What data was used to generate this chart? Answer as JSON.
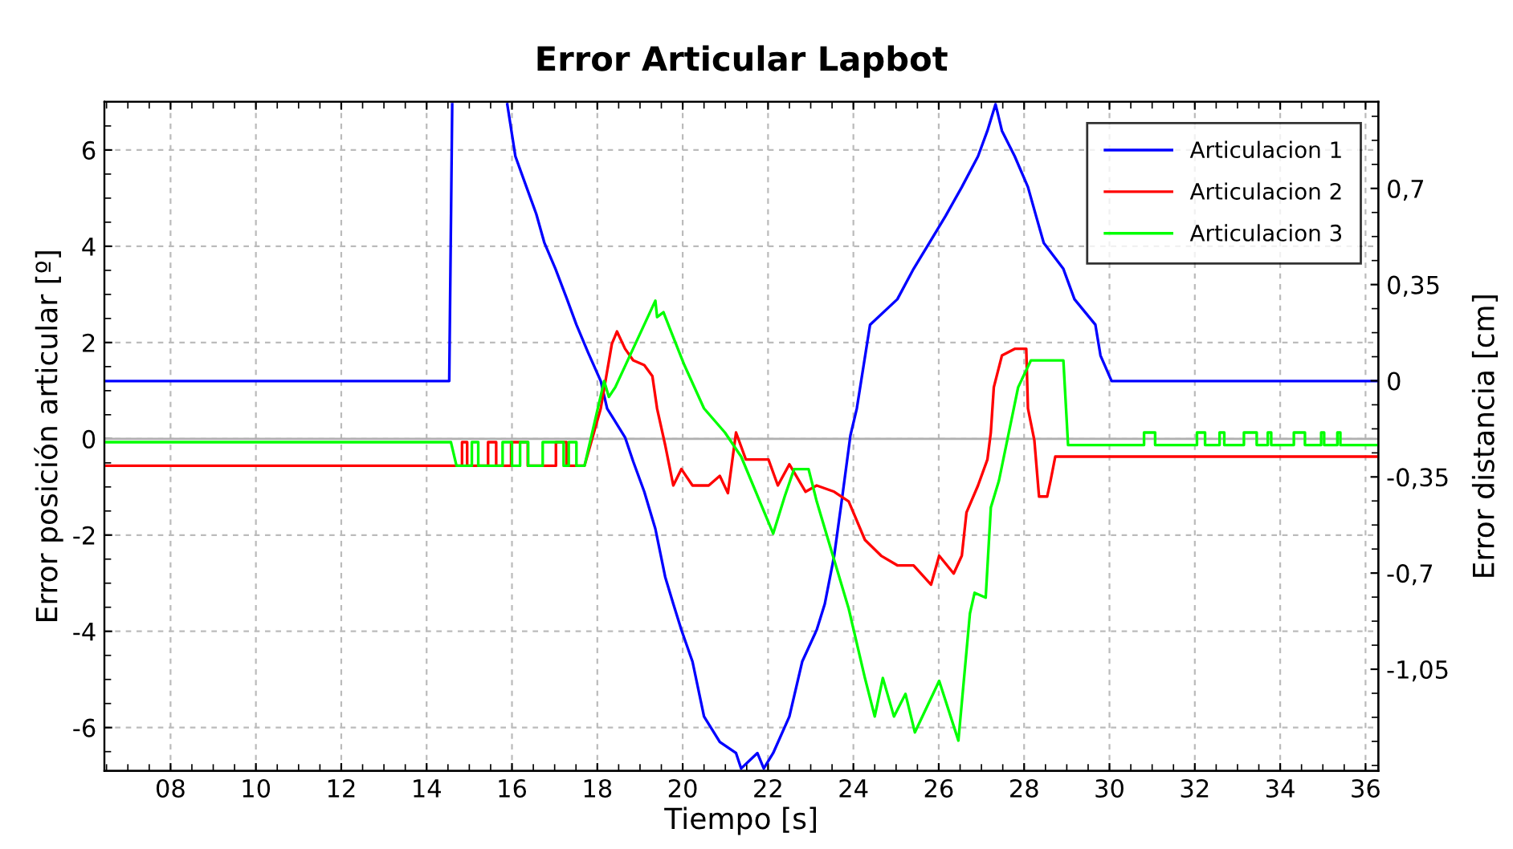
{
  "chart_data": {
    "type": "line",
    "title": "Error Articular Lapbot",
    "xlabel": "Tiempo [s]",
    "ylabel": "Error posición articular [º]",
    "y2label": "Error distancia [cm]",
    "xlim": [
      6.45,
      36.3
    ],
    "xticks": [
      {
        "value": 8,
        "label": "08"
      },
      10,
      12,
      14,
      16,
      18,
      20,
      22,
      24,
      26,
      28,
      30,
      32,
      34,
      36
    ],
    "ylim": [
      -6.9,
      7.0
    ],
    "yticks": [
      -6,
      -4,
      -2,
      0,
      2,
      4,
      6
    ],
    "y2lim": [
      -1.42,
      1.015
    ],
    "y2ticks": [
      {
        "value": -1.05,
        "label": "-1,05"
      },
      {
        "value": -0.7,
        "label": "-0,7"
      },
      {
        "value": -0.35,
        "label": "-0,35"
      },
      0,
      {
        "value": 0.35,
        "label": "0,35"
      },
      {
        "value": 0.7,
        "label": "0,7"
      }
    ],
    "grid": true,
    "legend": "top right",
    "line_style": "solid",
    "marker": "none",
    "ref_lines": [
      {
        "axis": "y",
        "value": 0,
        "color": "#b0b0b0",
        "line_style": "solid"
      }
    ],
    "series": [
      {
        "name": "Articulacion 1",
        "color": "#0000ff",
        "x": [
          6.45,
          14.53,
          14.6,
          null,
          15.89,
          16.08,
          16.34,
          16.57,
          16.76,
          17.02,
          17.29,
          17.51,
          17.78,
          18.08,
          18.23,
          18.65,
          18.84,
          19.1,
          19.36,
          19.59,
          19.78,
          19.97,
          20.23,
          20.5,
          20.87,
          21.25,
          21.37,
          21.75,
          21.9,
          22.12,
          22.5,
          22.8,
          23.14,
          23.33,
          23.55,
          23.74,
          23.93,
          24.08,
          24.39,
          25.03,
          25.41,
          25.78,
          26.16,
          26.54,
          26.92,
          27.14,
          27.33,
          27.48,
          27.78,
          28.09,
          28.28,
          28.46,
          28.92,
          29.18,
          29.67,
          29.79,
          30.05,
          36.3
        ],
        "values": [
          1.2,
          1.2,
          6.95,
          null,
          6.95,
          5.87,
          5.23,
          4.67,
          4.07,
          3.53,
          2.9,
          2.37,
          1.8,
          1.2,
          0.63,
          0.03,
          -0.47,
          -1.1,
          -1.87,
          -2.87,
          -3.43,
          -3.97,
          -4.63,
          -5.77,
          -6.3,
          -6.53,
          -6.85,
          -6.53,
          -6.85,
          -6.53,
          -5.77,
          -4.63,
          -3.97,
          -3.43,
          -2.43,
          -1.2,
          0.07,
          0.63,
          2.37,
          2.9,
          3.53,
          4.07,
          4.63,
          5.23,
          5.87,
          6.4,
          6.95,
          6.4,
          5.87,
          5.23,
          4.63,
          4.07,
          3.53,
          2.9,
          2.37,
          1.73,
          1.2,
          1.2
        ]
      },
      {
        "name": "Articulacion 2",
        "color": "#ff0000",
        "x": [
          6.45,
          14.83,
          14.83,
          14.95,
          14.95,
          15.44,
          15.44,
          15.63,
          15.63,
          15.98,
          15.98,
          16.37,
          16.37,
          17.03,
          17.03,
          17.28,
          17.28,
          17.7,
          18.08,
          18.34,
          18.46,
          18.65,
          18.84,
          19.1,
          19.29,
          19.4,
          19.59,
          19.78,
          19.97,
          20.23,
          20.61,
          20.87,
          21.06,
          21.25,
          21.48,
          22.01,
          22.23,
          22.5,
          22.88,
          23.14,
          23.55,
          23.89,
          24.27,
          24.65,
          25.03,
          25.41,
          25.82,
          26.01,
          26.35,
          26.54,
          26.65,
          26.92,
          27.14,
          27.22,
          27.29,
          27.48,
          27.78,
          28.05,
          28.09,
          28.24,
          28.35,
          28.54,
          28.62,
          28.73,
          36.3
        ],
        "values": [
          -0.56,
          -0.56,
          -0.07,
          -0.07,
          -0.56,
          -0.56,
          -0.07,
          -0.07,
          -0.56,
          -0.56,
          -0.07,
          -0.07,
          -0.56,
          -0.56,
          -0.07,
          -0.07,
          -0.56,
          -0.56,
          0.63,
          1.97,
          2.23,
          1.87,
          1.63,
          1.53,
          1.3,
          0.63,
          -0.13,
          -0.97,
          -0.63,
          -0.97,
          -0.97,
          -0.77,
          -1.13,
          0.13,
          -0.43,
          -0.43,
          -0.97,
          -0.53,
          -1.1,
          -0.97,
          -1.1,
          -1.3,
          -2.1,
          -2.43,
          -2.63,
          -2.63,
          -3.03,
          -2.43,
          -2.8,
          -2.43,
          -1.53,
          -0.97,
          -0.43,
          0.13,
          1.07,
          1.73,
          1.87,
          1.87,
          0.63,
          -0.03,
          -1.2,
          -1.2,
          -0.87,
          -0.37,
          -0.37
        ]
      },
      {
        "name": "Articulacion 3",
        "color": "#00ff00",
        "x": [
          6.45,
          14.57,
          14.7,
          15.06,
          15.06,
          15.21,
          15.21,
          15.78,
          15.78,
          16.0,
          16.0,
          16.19,
          16.19,
          16.38,
          16.38,
          16.72,
          16.72,
          17.21,
          17.21,
          17.33,
          17.33,
          17.51,
          17.51,
          17.7,
          18.16,
          18.27,
          18.42,
          19.36,
          19.4,
          19.55,
          19.74,
          20.04,
          20.5,
          20.99,
          21.37,
          22.12,
          22.39,
          22.61,
          22.95,
          23.14,
          23.52,
          23.89,
          24.27,
          24.5,
          24.69,
          24.95,
          25.22,
          25.44,
          26.01,
          26.46,
          26.73,
          26.84,
          27.1,
          27.22,
          27.41,
          27.86,
          28.16,
          28.92,
          29.03,
          30.81,
          30.81,
          31.07,
          31.07,
          32.05,
          32.05,
          32.24,
          32.24,
          32.58,
          32.58,
          32.69,
          32.69,
          33.15,
          33.15,
          33.45,
          33.45,
          33.71,
          33.71,
          33.79,
          33.79,
          34.32,
          34.32,
          34.58,
          34.58,
          34.96,
          34.96,
          35.03,
          35.03,
          35.34,
          35.34,
          35.41,
          35.41,
          36.3
        ],
        "values": [
          -0.07,
          -0.07,
          -0.56,
          -0.56,
          -0.07,
          -0.07,
          -0.56,
          -0.56,
          -0.07,
          -0.07,
          -0.56,
          -0.56,
          -0.07,
          -0.07,
          -0.56,
          -0.56,
          -0.07,
          -0.07,
          -0.56,
          -0.56,
          -0.07,
          -0.07,
          -0.56,
          -0.56,
          1.2,
          0.87,
          1.07,
          2.87,
          2.53,
          2.63,
          2.2,
          1.53,
          0.63,
          0.13,
          -0.37,
          -1.97,
          -1.2,
          -0.63,
          -0.63,
          -1.3,
          -2.43,
          -3.53,
          -4.97,
          -5.77,
          -4.97,
          -5.77,
          -5.3,
          -6.1,
          -5.03,
          -6.27,
          -3.63,
          -3.2,
          -3.3,
          -1.43,
          -0.87,
          1.07,
          1.63,
          1.63,
          -0.13,
          -0.13,
          0.13,
          0.13,
          -0.13,
          -0.13,
          0.13,
          0.13,
          -0.13,
          -0.13,
          0.13,
          0.13,
          -0.13,
          -0.13,
          0.13,
          0.13,
          -0.13,
          -0.13,
          0.13,
          0.13,
          -0.13,
          -0.13,
          0.13,
          0.13,
          -0.13,
          -0.13,
          0.13,
          0.13,
          -0.13,
          -0.13,
          0.13,
          0.13,
          -0.13,
          -0.13
        ]
      }
    ]
  }
}
